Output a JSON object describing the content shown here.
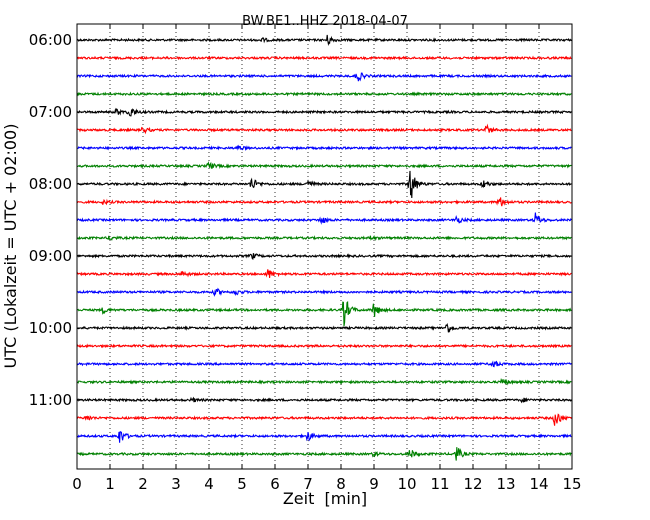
{
  "chart_data": {
    "type": "line",
    "title": "BW.BE1..HHZ 2018-04-07",
    "xlabel": "Zeit  [min]",
    "ylabel": "UTC (Lokalzeit = UTC + 02:00)",
    "xlim": [
      0,
      15
    ],
    "x_ticks": [
      "0",
      "1",
      "2",
      "3",
      "4",
      "5",
      "6",
      "7",
      "8",
      "9",
      "10",
      "11",
      "12",
      "13",
      "14",
      "15"
    ],
    "y_tick_labels": [
      "06:00",
      "07:00",
      "08:00",
      "09:00",
      "10:00",
      "11:00"
    ],
    "grid": "vertical dotted",
    "trace_colors": [
      "#000000",
      "#ff0000",
      "#0000ff",
      "#008000"
    ],
    "traces": [
      {
        "start": "06:00",
        "events": [
          [
            7.6,
            5
          ],
          [
            5.6,
            2
          ]
        ]
      },
      {
        "start": "06:15",
        "events": []
      },
      {
        "start": "06:30",
        "events": [
          [
            8.5,
            6
          ]
        ]
      },
      {
        "start": "06:45",
        "events": []
      },
      {
        "start": "07:00",
        "events": [
          [
            1.6,
            6
          ],
          [
            1.2,
            3
          ]
        ]
      },
      {
        "start": "07:15",
        "events": [
          [
            12.4,
            5
          ],
          [
            2.0,
            3
          ]
        ]
      },
      {
        "start": "07:30",
        "events": [
          [
            4.9,
            2
          ]
        ]
      },
      {
        "start": "07:45",
        "events": [
          [
            4.0,
            4
          ]
        ]
      },
      {
        "start": "08:00",
        "events": [
          [
            10.1,
            20
          ],
          [
            5.3,
            7
          ],
          [
            7.0,
            4
          ],
          [
            12.3,
            4
          ]
        ]
      },
      {
        "start": "08:15",
        "events": [
          [
            12.8,
            6
          ],
          [
            0.8,
            2
          ]
        ]
      },
      {
        "start": "08:30",
        "events": [
          [
            13.9,
            7
          ],
          [
            7.4,
            4
          ],
          [
            11.5,
            4
          ]
        ]
      },
      {
        "start": "08:45",
        "events": [
          [
            1.0,
            2
          ],
          [
            8.9,
            2
          ]
        ]
      },
      {
        "start": "09:00",
        "events": [
          [
            5.3,
            3
          ]
        ]
      },
      {
        "start": "09:15",
        "events": [
          [
            5.8,
            5
          ],
          [
            3.2,
            3
          ]
        ]
      },
      {
        "start": "09:30",
        "events": [
          [
            4.2,
            4
          ],
          [
            4.8,
            3
          ]
        ]
      },
      {
        "start": "09:45",
        "events": [
          [
            8.1,
            16
          ],
          [
            9.0,
            8
          ],
          [
            0.8,
            3
          ]
        ]
      },
      {
        "start": "10:00",
        "events": [
          [
            11.2,
            6
          ]
        ]
      },
      {
        "start": "10:15",
        "events": []
      },
      {
        "start": "10:30",
        "events": [
          [
            12.6,
            4
          ]
        ]
      },
      {
        "start": "10:45",
        "events": [
          [
            12.9,
            4
          ]
        ]
      },
      {
        "start": "11:00",
        "events": [
          [
            3.5,
            2
          ],
          [
            13.5,
            2
          ]
        ]
      },
      {
        "start": "11:15",
        "events": [
          [
            14.5,
            10
          ],
          [
            0.3,
            3
          ]
        ]
      },
      {
        "start": "11:30",
        "events": [
          [
            1.3,
            8
          ],
          [
            7.0,
            5
          ]
        ]
      },
      {
        "start": "11:45",
        "events": [
          [
            11.5,
            8
          ],
          [
            10.1,
            5
          ],
          [
            9.0,
            2
          ]
        ]
      }
    ]
  }
}
